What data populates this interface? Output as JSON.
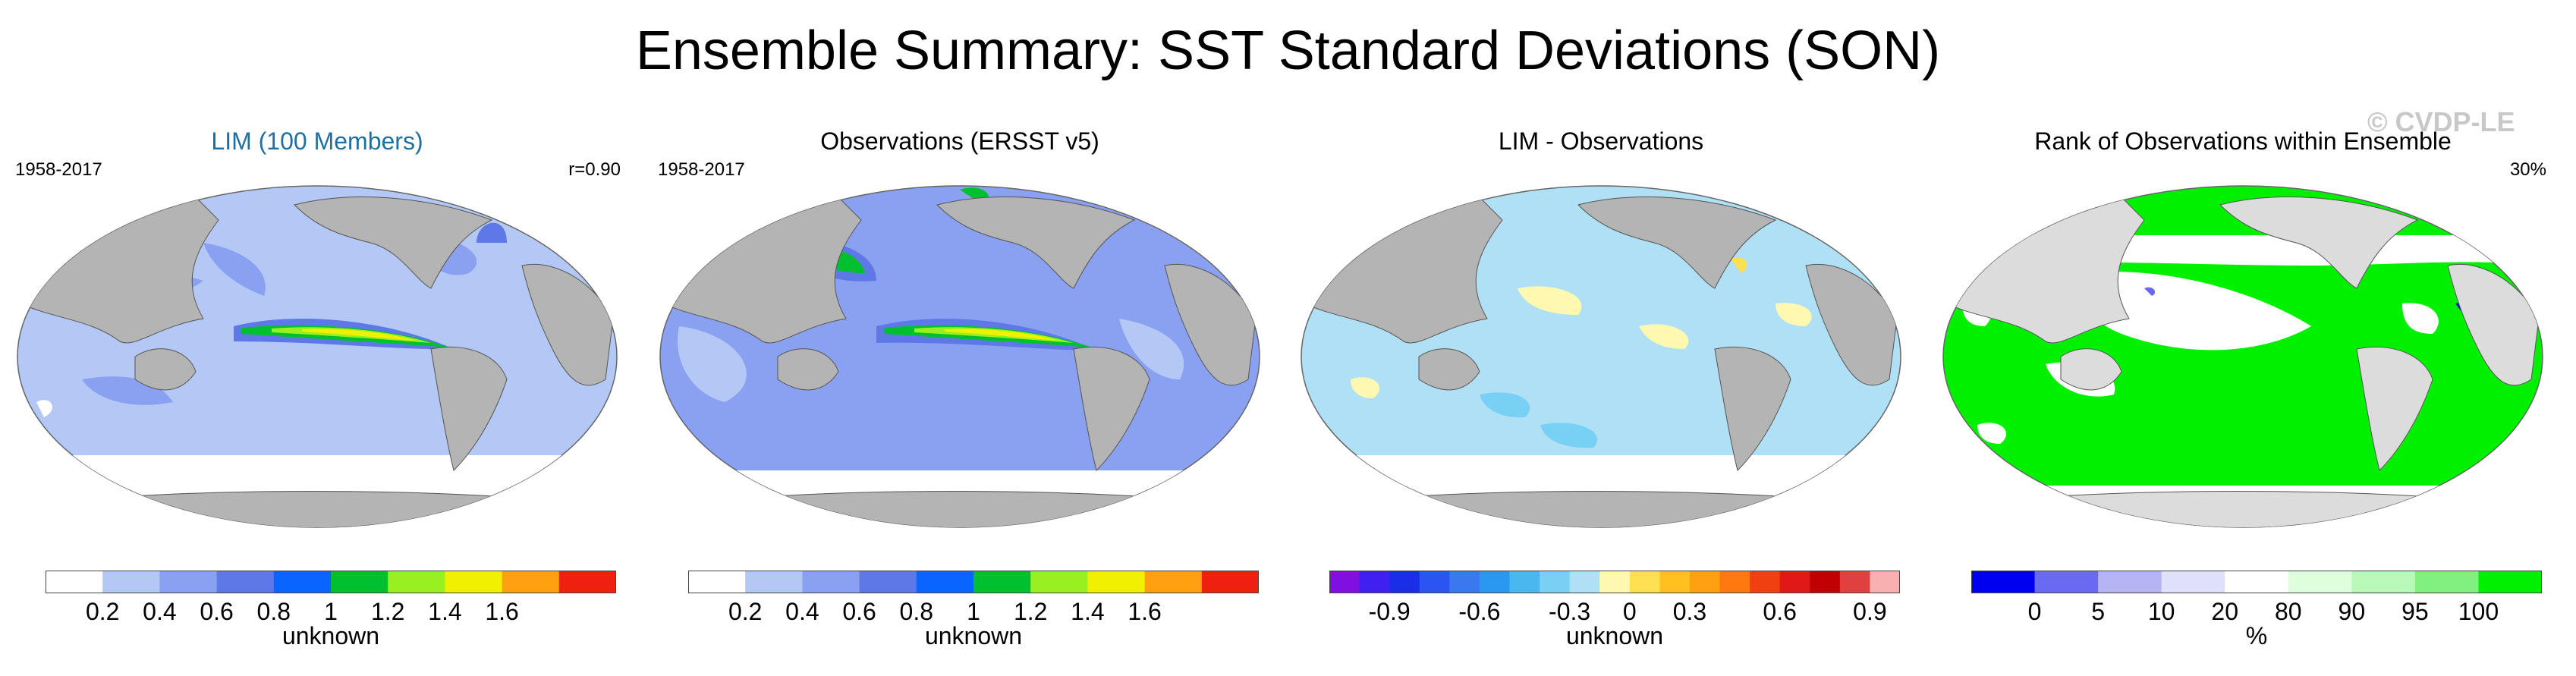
{
  "figure": {
    "title": "Ensemble Summary: SST Standard Deviations (SON)",
    "watermark": "© CVDP-LE"
  },
  "colors": {
    "land": "#b4b4b4",
    "title_accent": "#1f6fa0"
  },
  "panels": [
    {
      "title": "LIM (100 Members)",
      "left_label": "1958-2017",
      "right_label": "r=0.90",
      "units": "unknown",
      "palette": [
        "#ffffff",
        "#b4c8f5",
        "#8aa0f0",
        "#5f78e8",
        "#0a64ff",
        "#00c030",
        "#98f020",
        "#f0f000",
        "#ffa010",
        "#f02010"
      ],
      "tick_labels": [
        "0.2",
        "0.4",
        "0.6",
        "0.8",
        "1",
        "1.2",
        "1.4",
        "1.6"
      ],
      "tick_boundaries": [
        1,
        2,
        3,
        4,
        5,
        6,
        7,
        8
      ]
    },
    {
      "title": "Observations (ERSST v5)",
      "left_label": "1958-2017",
      "right_label": "",
      "units": "unknown",
      "palette": [
        "#ffffff",
        "#b4c8f5",
        "#8aa0f0",
        "#5f78e8",
        "#0a64ff",
        "#00c030",
        "#98f020",
        "#f0f000",
        "#ffa010",
        "#f02010"
      ],
      "tick_labels": [
        "0.2",
        "0.4",
        "0.6",
        "0.8",
        "1",
        "1.2",
        "1.4",
        "1.6"
      ],
      "tick_boundaries": [
        1,
        2,
        3,
        4,
        5,
        6,
        7,
        8
      ]
    },
    {
      "title": "LIM - Observations",
      "left_label": "",
      "right_label": "",
      "units": "unknown",
      "palette": [
        "#8010e0",
        "#4020f0",
        "#1a2ee8",
        "#2a55f0",
        "#3a78f0",
        "#2a98f0",
        "#4ab8f0",
        "#78d0f5",
        "#b0e0f5",
        "#fff8b0",
        "#ffe050",
        "#ffc020",
        "#ffa010",
        "#ff7810",
        "#f04010",
        "#e01818",
        "#c00000",
        "#e04040",
        "#f8b0b0"
      ],
      "tick_labels": [
        "-0.9",
        "-0.6",
        "-0.3",
        "0",
        "0.3",
        "0.6",
        "0.9"
      ],
      "tick_boundaries": [
        2,
        5,
        8,
        10,
        12,
        15,
        18
      ]
    },
    {
      "title": "Rank of Observations within Ensemble",
      "left_label": "",
      "right_label": "30%",
      "units": "%",
      "palette": [
        "#0000f0",
        "#6a6af0",
        "#b4b4f5",
        "#e0e0fb",
        "#ffffff",
        "#ddffdd",
        "#b8f8b8",
        "#80f080",
        "#00f000"
      ],
      "tick_labels": [
        "0",
        "5",
        "10",
        "20",
        "80",
        "90",
        "95",
        "100"
      ],
      "tick_boundaries": [
        1,
        2,
        3,
        4,
        5,
        6,
        7,
        8
      ]
    }
  ]
}
